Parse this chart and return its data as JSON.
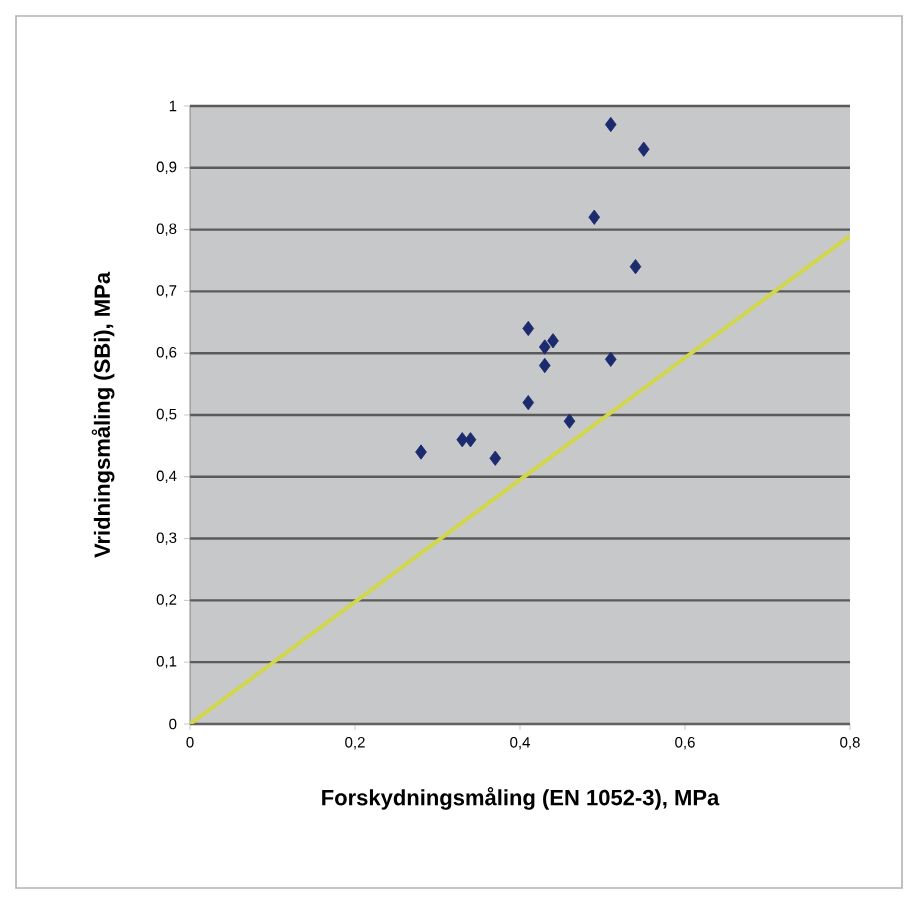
{
  "chart_data": {
    "type": "scatter",
    "xlabel": "Forskydningsmåling (EN 1052-3), MPa",
    "ylabel": "Vridningsmåling (SBi), MPa",
    "xlim": [
      0,
      0.8
    ],
    "ylim": [
      0,
      1
    ],
    "xticks": [
      0,
      {
        "value": 0.2,
        "label": "0,2"
      },
      {
        "value": 0.4,
        "label": "0,4"
      },
      {
        "value": 0.6,
        "label": "0,6"
      },
      {
        "value": 0.8,
        "label": "0,8"
      }
    ],
    "yticks": [
      0,
      {
        "value": 0.1,
        "label": "0,1"
      },
      {
        "value": 0.2,
        "label": "0,2"
      },
      {
        "value": 0.3,
        "label": "0,3"
      },
      {
        "value": 0.4,
        "label": "0,4"
      },
      {
        "value": 0.5,
        "label": "0,5"
      },
      {
        "value": 0.6,
        "label": "0,6"
      },
      {
        "value": 0.7,
        "label": "0,7"
      },
      {
        "value": 0.8,
        "label": "0,8"
      },
      {
        "value": 0.9,
        "label": "0,9"
      },
      {
        "value": 1,
        "label": "1"
      }
    ],
    "grid": "y",
    "series": [
      {
        "marker": "diamond",
        "color": "#1c2a6e",
        "x": [
          0.28,
          0.33,
          0.34,
          0.37,
          0.41,
          0.43,
          0.44,
          0.43,
          0.41,
          0.46,
          0.51,
          0.49,
          0.54,
          0.51,
          0.55
        ],
        "values": [
          0.44,
          0.46,
          0.46,
          0.43,
          0.64,
          0.61,
          0.62,
          0.58,
          0.52,
          0.49,
          0.59,
          0.82,
          0.74,
          0.97,
          0.93
        ]
      },
      {
        "type": "line",
        "marker": "none",
        "color": "#d2d64a",
        "x": [
          0,
          0.8
        ],
        "values": [
          0,
          0.79
        ]
      }
    ]
  }
}
